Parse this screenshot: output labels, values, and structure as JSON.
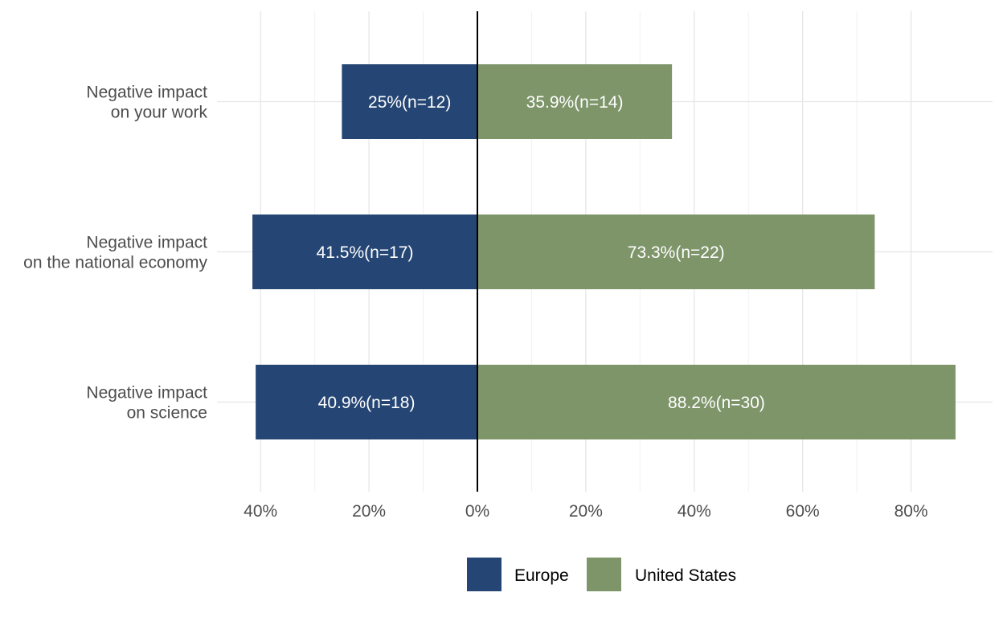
{
  "chart_data": {
    "type": "bar",
    "orientation": "horizontal",
    "diverging": true,
    "categories": [
      "Negative impact on your work",
      "Negative impact on the national economy",
      "Negative impact on science"
    ],
    "category_lines": [
      [
        "Negative impact",
        "on your work"
      ],
      [
        "Negative impact",
        "on the national economy"
      ],
      [
        "Negative impact",
        "on science"
      ]
    ],
    "series": [
      {
        "name": "Europe",
        "color": "#254674",
        "direction": "left",
        "values": [
          25,
          41.5,
          40.9
        ],
        "labels": [
          "25%(n=12)",
          "41.5%(n=17)",
          "40.9%(n=18)"
        ]
      },
      {
        "name": "United States",
        "color": "#7e956a",
        "direction": "right",
        "values": [
          35.9,
          73.3,
          88.2
        ],
        "labels": [
          "35.9%(n=14)",
          "73.3%(n=22)",
          "88.2%(n=30)"
        ]
      }
    ],
    "xlim": [
      -50,
      95
    ],
    "xticks": [
      -40,
      -20,
      0,
      20,
      40,
      60,
      80
    ],
    "xtick_labels": [
      "40%",
      "20%",
      "0%",
      "20%",
      "40%",
      "60%",
      "80%"
    ],
    "grid": true,
    "legend_position": "bottom",
    "title": "",
    "xlabel": "",
    "ylabel": ""
  }
}
